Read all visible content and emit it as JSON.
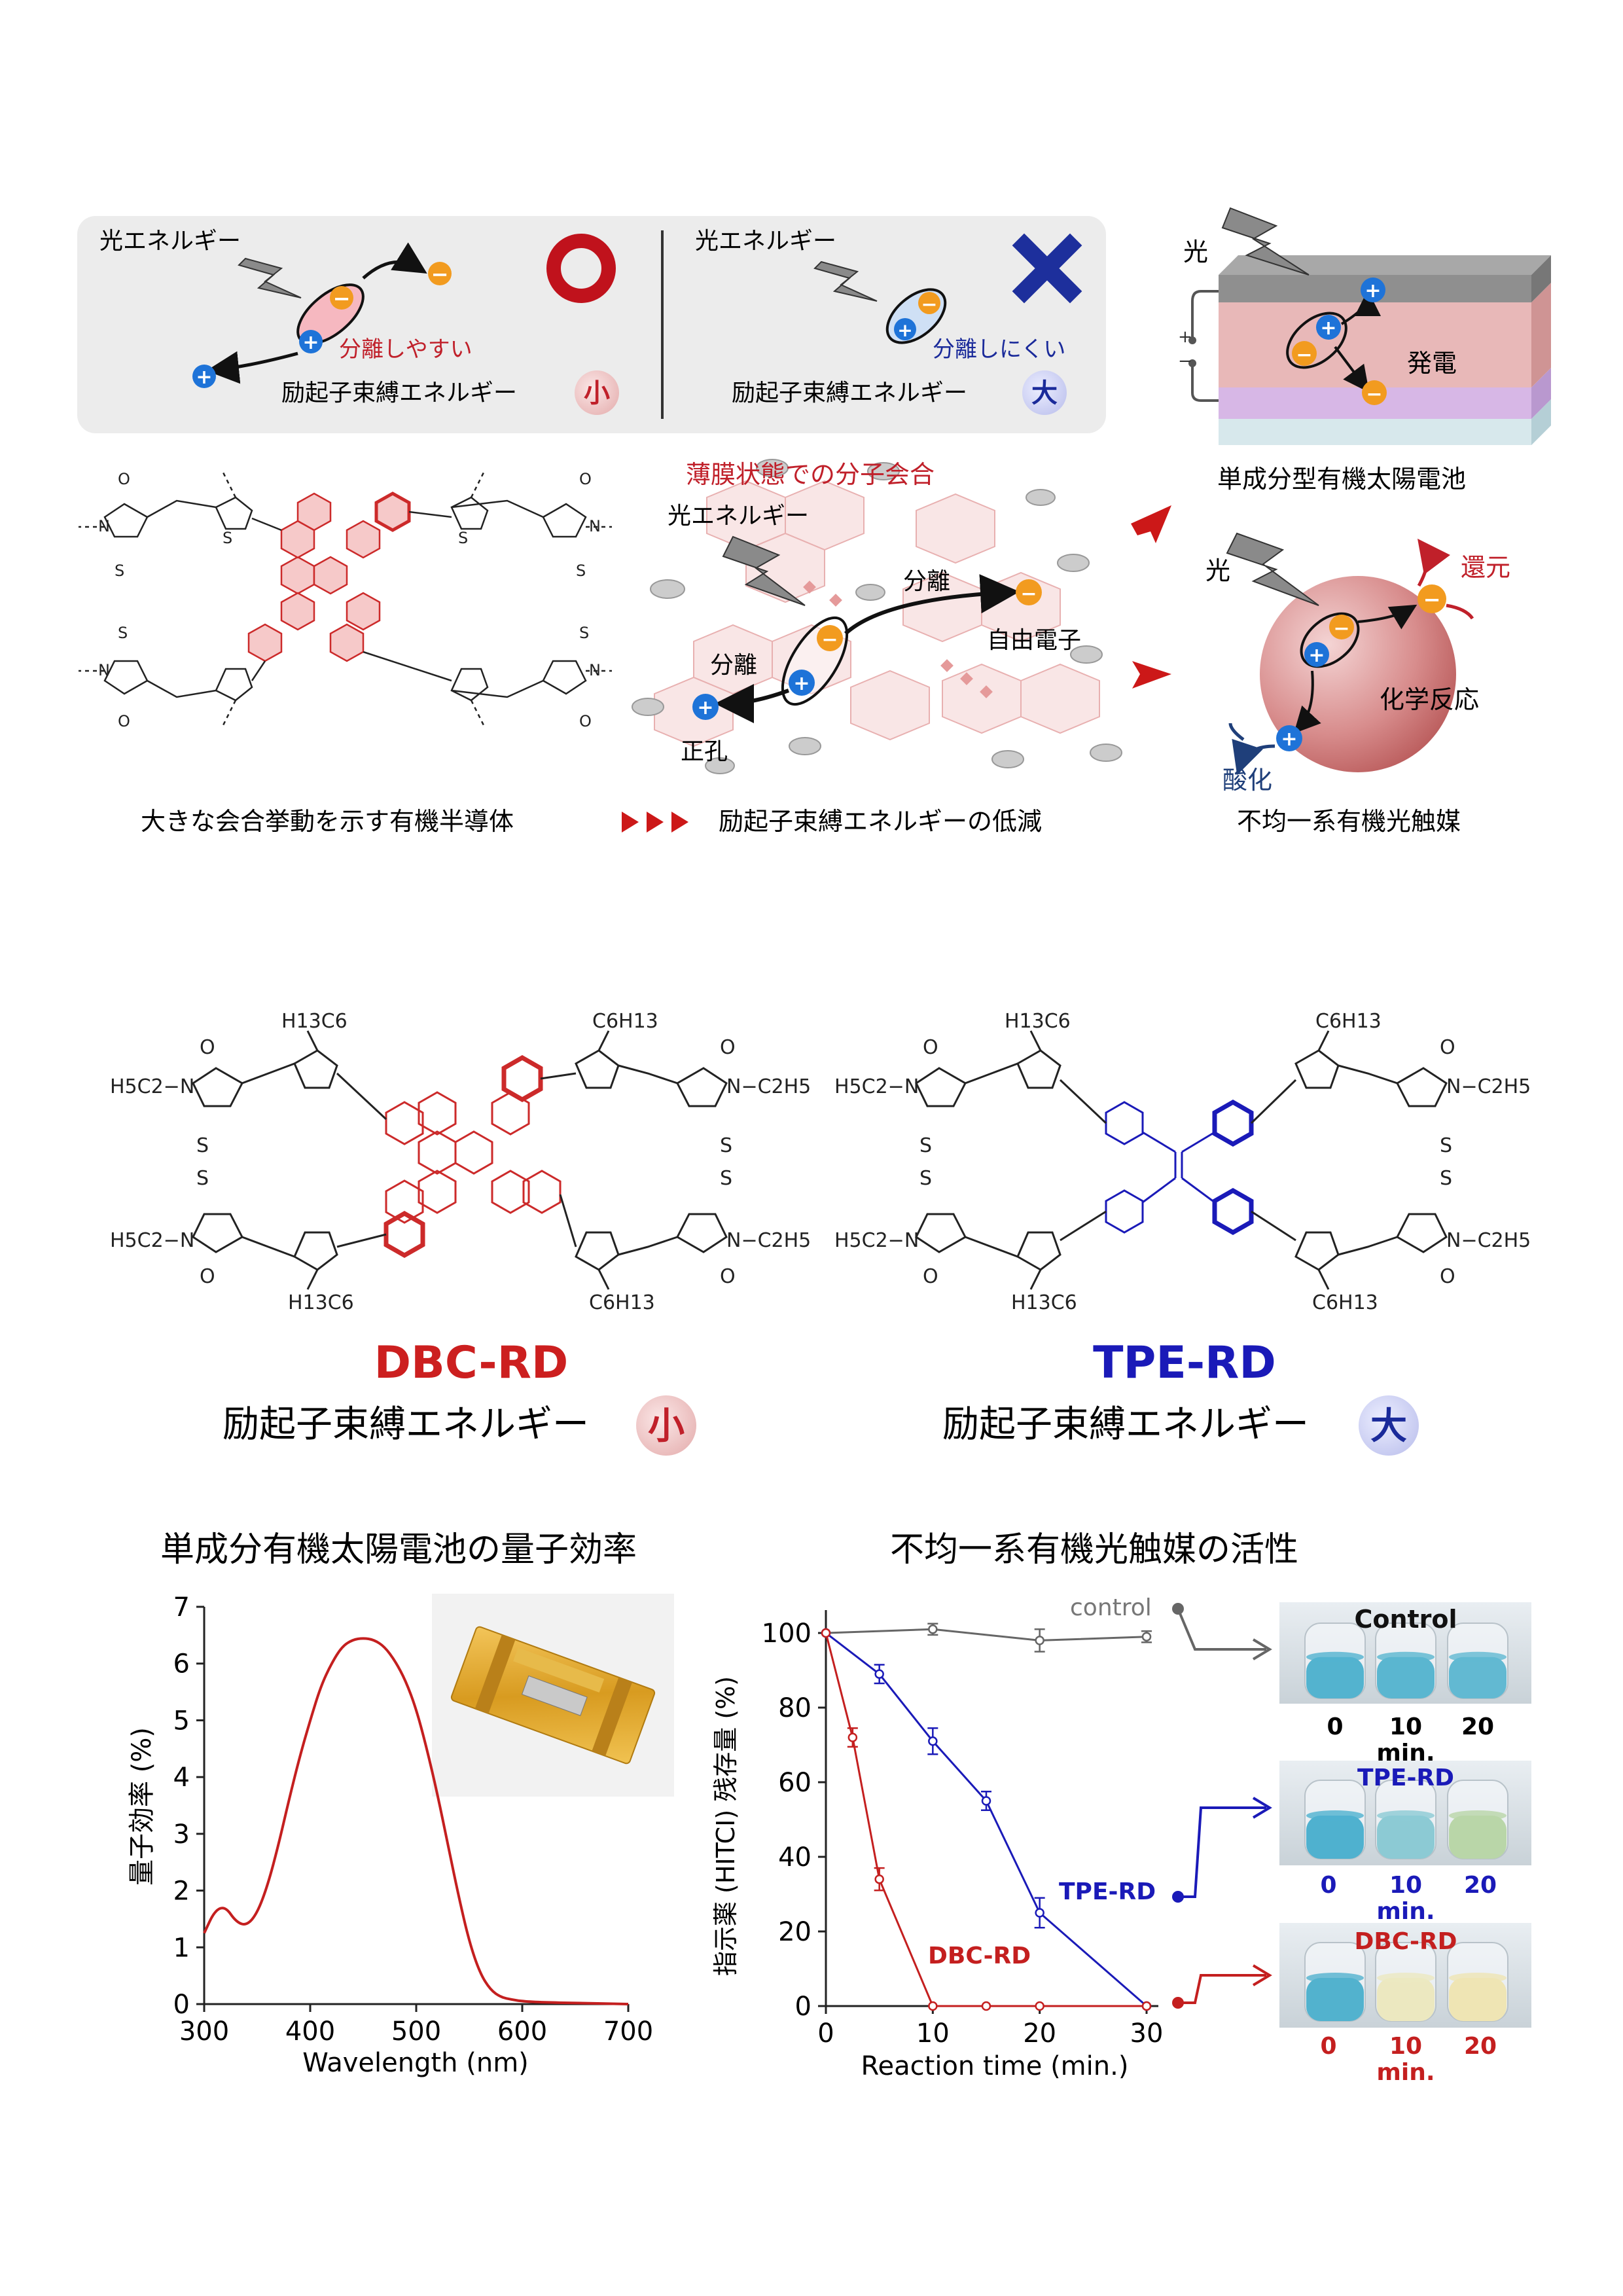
{
  "top_panel": {
    "good": {
      "light_label": "光エネルギー",
      "separation_label": "分離しやすい",
      "binding_label": "励起子束縛エネルギー",
      "binding_badge": "小"
    },
    "bad": {
      "light_label": "光エネルギー",
      "separation_label": "分離しにくい",
      "binding_label": "励起子束縛エネルギー",
      "binding_badge": "大"
    },
    "solar_cell": {
      "light": "光",
      "power": "発電",
      "plus": "+",
      "minus": "−",
      "caption": "単成分型有機太陽電池"
    },
    "photocatalyst": {
      "light": "光",
      "reduction": "還元",
      "reaction": "化学反応",
      "oxidation": "酸化",
      "caption": "不均一系有機光触媒"
    },
    "aggregation": {
      "title": "薄膜状態での分子会合",
      "light": "光エネルギー",
      "separation1": "分離",
      "separation2": "分離",
      "free_electron": "自由電子",
      "hole": "正孔"
    },
    "caption_left": "大きな会合挙動を示す有機半導体",
    "caption_middle": "励起子束縛エネルギーの低減",
    "plus_symbol": "+",
    "minus_symbol": "−"
  },
  "molecules": {
    "dbc": {
      "name": "DBC-RD",
      "binding_label": "励起子束縛エネルギー",
      "binding_badge": "小",
      "color": "#cc1f1f"
    },
    "tpe": {
      "name": "TPE-RD",
      "binding_label": "励起子束縛エネルギー",
      "binding_badge": "大",
      "color": "#1a1ab8"
    },
    "substituents": {
      "hexyl_left": "H13C6",
      "hexyl_right": "C6H13",
      "ethyl_left": "H5C2−N",
      "ethyl_right": "N−C2H5",
      "o": "O",
      "s": "S",
      "n": "N"
    }
  },
  "section_titles": {
    "left": "単成分有機太陽電池の量子効率",
    "right": "不均一系有機光触媒の活性"
  },
  "chart_data": [
    {
      "type": "line",
      "xlabel": "Wavelength (nm)",
      "ylabel": "量子効率 (%)",
      "xlim": [
        300,
        700
      ],
      "ylim": [
        0,
        7
      ],
      "xticks": [
        "300",
        "400",
        "500",
        "600",
        "700"
      ],
      "yticks": [
        "0",
        "1",
        "2",
        "3",
        "4",
        "5",
        "6",
        "7"
      ],
      "series": [
        {
          "color": "#c41f1f",
          "x": [
            300,
            310,
            320,
            330,
            340,
            350,
            360,
            370,
            380,
            390,
            400,
            410,
            420,
            430,
            440,
            450,
            460,
            470,
            480,
            490,
            500,
            510,
            520,
            530,
            540,
            550,
            560,
            570,
            580,
            590,
            600,
            620,
            650,
            700
          ],
          "y": [
            1.25,
            1.65,
            1.72,
            1.45,
            1.38,
            1.6,
            2.1,
            2.8,
            3.6,
            4.35,
            5.0,
            5.6,
            6.0,
            6.3,
            6.42,
            6.45,
            6.42,
            6.3,
            6.05,
            5.7,
            5.2,
            4.5,
            3.7,
            2.8,
            1.9,
            1.1,
            0.55,
            0.25,
            0.12,
            0.08,
            0.05,
            0.03,
            0.02,
            0.0
          ]
        }
      ]
    },
    {
      "type": "line",
      "xlabel": "Reaction time (min.)",
      "ylabel": "指示薬 (HITCI) 残存量 (%)",
      "xlim": [
        0,
        30
      ],
      "ylim": [
        0,
        100
      ],
      "xticks": [
        "0",
        "10",
        "20",
        "30"
      ],
      "yticks": [
        "0",
        "20",
        "40",
        "60",
        "80",
        "100"
      ],
      "series": [
        {
          "name": "control",
          "color": "#666666",
          "x": [
            0,
            10,
            20,
            30
          ],
          "y": [
            100,
            101,
            98,
            99
          ],
          "err": [
            0,
            1.5,
            3,
            1.5
          ]
        },
        {
          "name": "TPE-RD",
          "color": "#1a1ab8",
          "x": [
            0,
            5,
            10,
            15,
            20,
            30
          ],
          "y": [
            100,
            89,
            71,
            55,
            25,
            0
          ],
          "err": [
            0,
            2.5,
            3.5,
            2.5,
            4,
            0
          ]
        },
        {
          "name": "DBC-RD",
          "color": "#c41f1f",
          "x": [
            0,
            2.5,
            5,
            10,
            15,
            20,
            30
          ],
          "y": [
            100,
            72,
            34,
            0,
            0,
            0,
            0
          ],
          "err": [
            0,
            2.5,
            3,
            0,
            0,
            0,
            0
          ]
        }
      ]
    }
  ],
  "vials": {
    "control": {
      "title": "Control",
      "labels": [
        "0",
        "10",
        "20"
      ],
      "unit": "min.",
      "colors": [
        "#53b3cf",
        "#5ab6d0",
        "#62b9d2"
      ]
    },
    "tpe": {
      "title": "TPE-RD",
      "labels": [
        "0",
        "10",
        "20"
      ],
      "unit": "min.",
      "colors": [
        "#4fb1cf",
        "#8ccad4",
        "#b9d6a8"
      ]
    },
    "dbc": {
      "title": "DBC-RD",
      "labels": [
        "0",
        "10",
        "20"
      ],
      "unit": "min.",
      "colors": [
        "#52b2ce",
        "#ece8c0",
        "#efe5b4"
      ]
    }
  }
}
